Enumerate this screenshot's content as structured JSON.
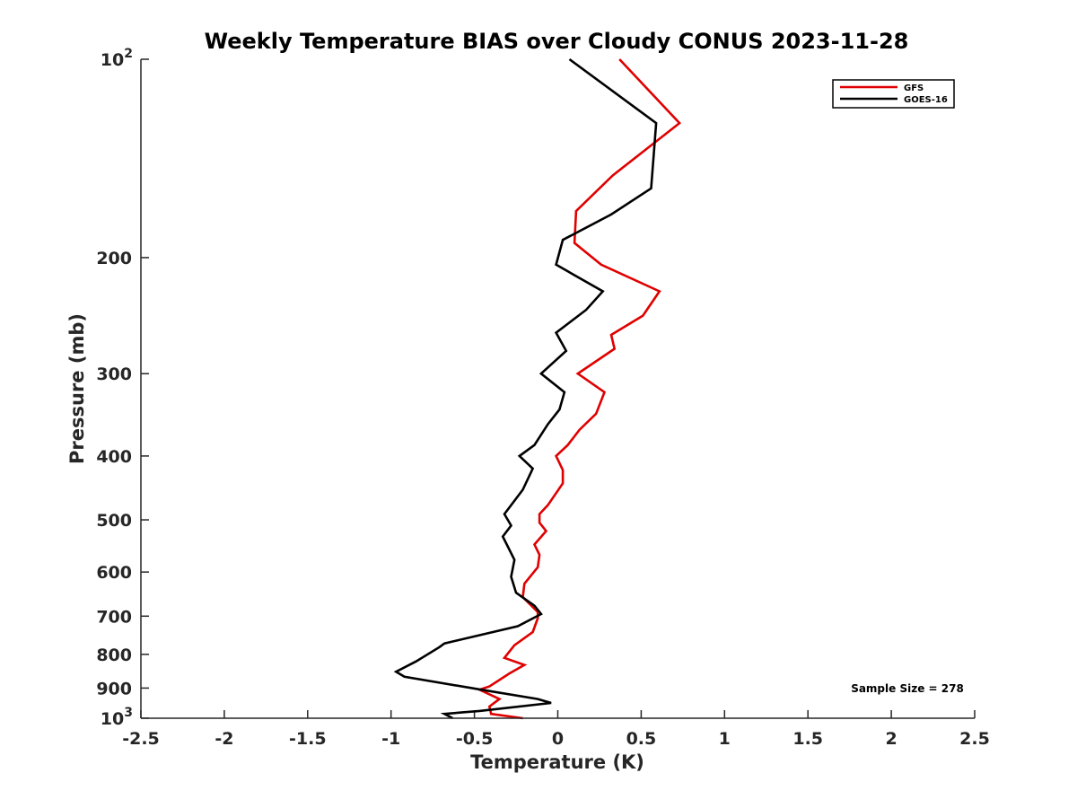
{
  "chart_data": {
    "type": "line",
    "title": "Weekly Temperature BIAS over Cloudy CONUS 2023-11-28",
    "xlabel": "Temperature (K)",
    "ylabel": "Pressure (mb)",
    "xlim": [
      -2.5,
      2.5
    ],
    "ylim": [
      1000,
      100
    ],
    "y_scale": "log",
    "x_ticks": [
      "-2.5",
      "-2",
      "-1.5",
      "-1",
      "-0.5",
      "0",
      "0.5",
      "1",
      "1.5",
      "2",
      "2.5"
    ],
    "x_tick_values": [
      -2.5,
      -2,
      -1.5,
      -1,
      -0.5,
      0,
      0.5,
      1,
      1.5,
      2,
      2.5
    ],
    "y_ticks": [
      {
        "value": 100,
        "base": "10",
        "exp": "2"
      },
      {
        "value": 200,
        "label": "200"
      },
      {
        "value": 300,
        "label": "300"
      },
      {
        "value": 400,
        "label": "400"
      },
      {
        "value": 500,
        "label": "500"
      },
      {
        "value": 600,
        "label": "600"
      },
      {
        "value": 700,
        "label": "700"
      },
      {
        "value": 800,
        "label": "800"
      },
      {
        "value": 900,
        "label": "900"
      },
      {
        "value": 1000,
        "base": "10",
        "exp": "3"
      }
    ],
    "legend": {
      "position": "top-right"
    },
    "series": [
      {
        "name": "GFS",
        "color": "#e00000",
        "points": [
          [
            0.37,
            100
          ],
          [
            0.73,
            125
          ],
          [
            0.33,
            150
          ],
          [
            0.11,
            170
          ],
          [
            0.1,
            190
          ],
          [
            0.26,
            205
          ],
          [
            0.61,
            225
          ],
          [
            0.51,
            245
          ],
          [
            0.32,
            262
          ],
          [
            0.34,
            275
          ],
          [
            0.12,
            300
          ],
          [
            0.28,
            320
          ],
          [
            0.23,
            345
          ],
          [
            0.13,
            365
          ],
          [
            0.06,
            385
          ],
          [
            -0.01,
            400
          ],
          [
            0.03,
            420
          ],
          [
            0.03,
            440
          ],
          [
            -0.06,
            475
          ],
          [
            -0.11,
            490
          ],
          [
            -0.11,
            505
          ],
          [
            -0.07,
            520
          ],
          [
            -0.14,
            545
          ],
          [
            -0.11,
            565
          ],
          [
            -0.12,
            590
          ],
          [
            -0.2,
            625
          ],
          [
            -0.21,
            655
          ],
          [
            -0.12,
            690
          ],
          [
            -0.12,
            705
          ],
          [
            -0.15,
            740
          ],
          [
            -0.26,
            775
          ],
          [
            -0.32,
            810
          ],
          [
            -0.2,
            830
          ],
          [
            -0.29,
            855
          ],
          [
            -0.41,
            895
          ],
          [
            -0.47,
            905
          ],
          [
            -0.35,
            935
          ],
          [
            -0.41,
            960
          ],
          [
            -0.4,
            985
          ],
          [
            -0.21,
            1000
          ]
        ]
      },
      {
        "name": "GOES-16",
        "color": "#000000",
        "points": [
          [
            0.07,
            100
          ],
          [
            0.59,
            125
          ],
          [
            0.56,
            157
          ],
          [
            0.32,
            172
          ],
          [
            0.03,
            188
          ],
          [
            -0.01,
            205
          ],
          [
            0.27,
            225
          ],
          [
            0.17,
            240
          ],
          [
            -0.01,
            260
          ],
          [
            0.05,
            277
          ],
          [
            -0.1,
            300
          ],
          [
            0.04,
            320
          ],
          [
            0.01,
            340
          ],
          [
            -0.06,
            358
          ],
          [
            -0.14,
            385
          ],
          [
            -0.23,
            400
          ],
          [
            -0.15,
            418
          ],
          [
            -0.21,
            450
          ],
          [
            -0.32,
            490
          ],
          [
            -0.28,
            510
          ],
          [
            -0.33,
            530
          ],
          [
            -0.26,
            575
          ],
          [
            -0.28,
            610
          ],
          [
            -0.25,
            645
          ],
          [
            -0.14,
            675
          ],
          [
            -0.1,
            695
          ],
          [
            -0.24,
            725
          ],
          [
            -0.68,
            770
          ],
          [
            -0.71,
            780
          ],
          [
            -0.85,
            820
          ],
          [
            -0.97,
            850
          ],
          [
            -0.92,
            865
          ],
          [
            -0.46,
            905
          ],
          [
            -0.12,
            935
          ],
          [
            -0.04,
            948
          ],
          [
            -0.47,
            975
          ],
          [
            -0.68,
            985
          ],
          [
            -0.63,
            1000
          ]
        ]
      }
    ],
    "annotation": "Sample Size = 278"
  }
}
